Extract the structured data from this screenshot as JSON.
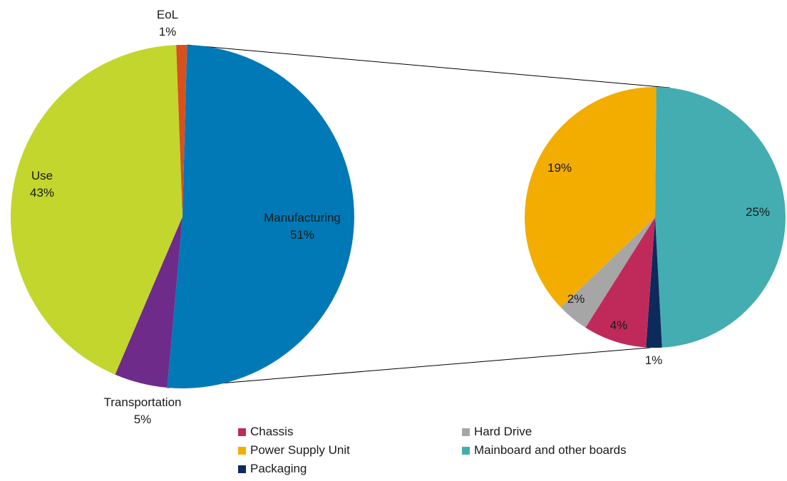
{
  "chart_data": [
    {
      "type": "pie",
      "slices": [
        {
          "name": "Manufacturing",
          "value": 51,
          "label": "51%",
          "color": "#0079b6"
        },
        {
          "name": "Transportation",
          "value": 5,
          "label": "5%",
          "color": "#6e2b8a"
        },
        {
          "name": "Use",
          "value": 43,
          "label": "43%",
          "color": "#c2d62e"
        },
        {
          "name": "EoL",
          "value": 1,
          "label": "1%",
          "color": "#d9501f"
        }
      ]
    },
    {
      "type": "pie",
      "slices": [
        {
          "name": "Mainboard and other boards",
          "value": 25,
          "label": "25%",
          "color": "#43adb1"
        },
        {
          "name": "Packaging",
          "value": 1,
          "label": "1%",
          "color": "#0d2a5c"
        },
        {
          "name": "Chassis",
          "value": 4,
          "label": "4%",
          "color": "#c02a5a"
        },
        {
          "name": "Hard Drive",
          "value": 2,
          "label": "2%",
          "color": "#a6a6a6"
        },
        {
          "name": "Power Supply Unit",
          "value": 19,
          "label": "19%",
          "color": "#f2ad00"
        }
      ]
    }
  ],
  "legend": [
    {
      "label": "Chassis",
      "color": "#c02a5a"
    },
    {
      "label": "Hard Drive",
      "color": "#a6a6a6"
    },
    {
      "label": "Power Supply Unit",
      "color": "#f2ad00"
    },
    {
      "label": "Mainboard and other boards",
      "color": "#43adb1"
    },
    {
      "label": "Packaging",
      "color": "#0d2a5c"
    }
  ]
}
